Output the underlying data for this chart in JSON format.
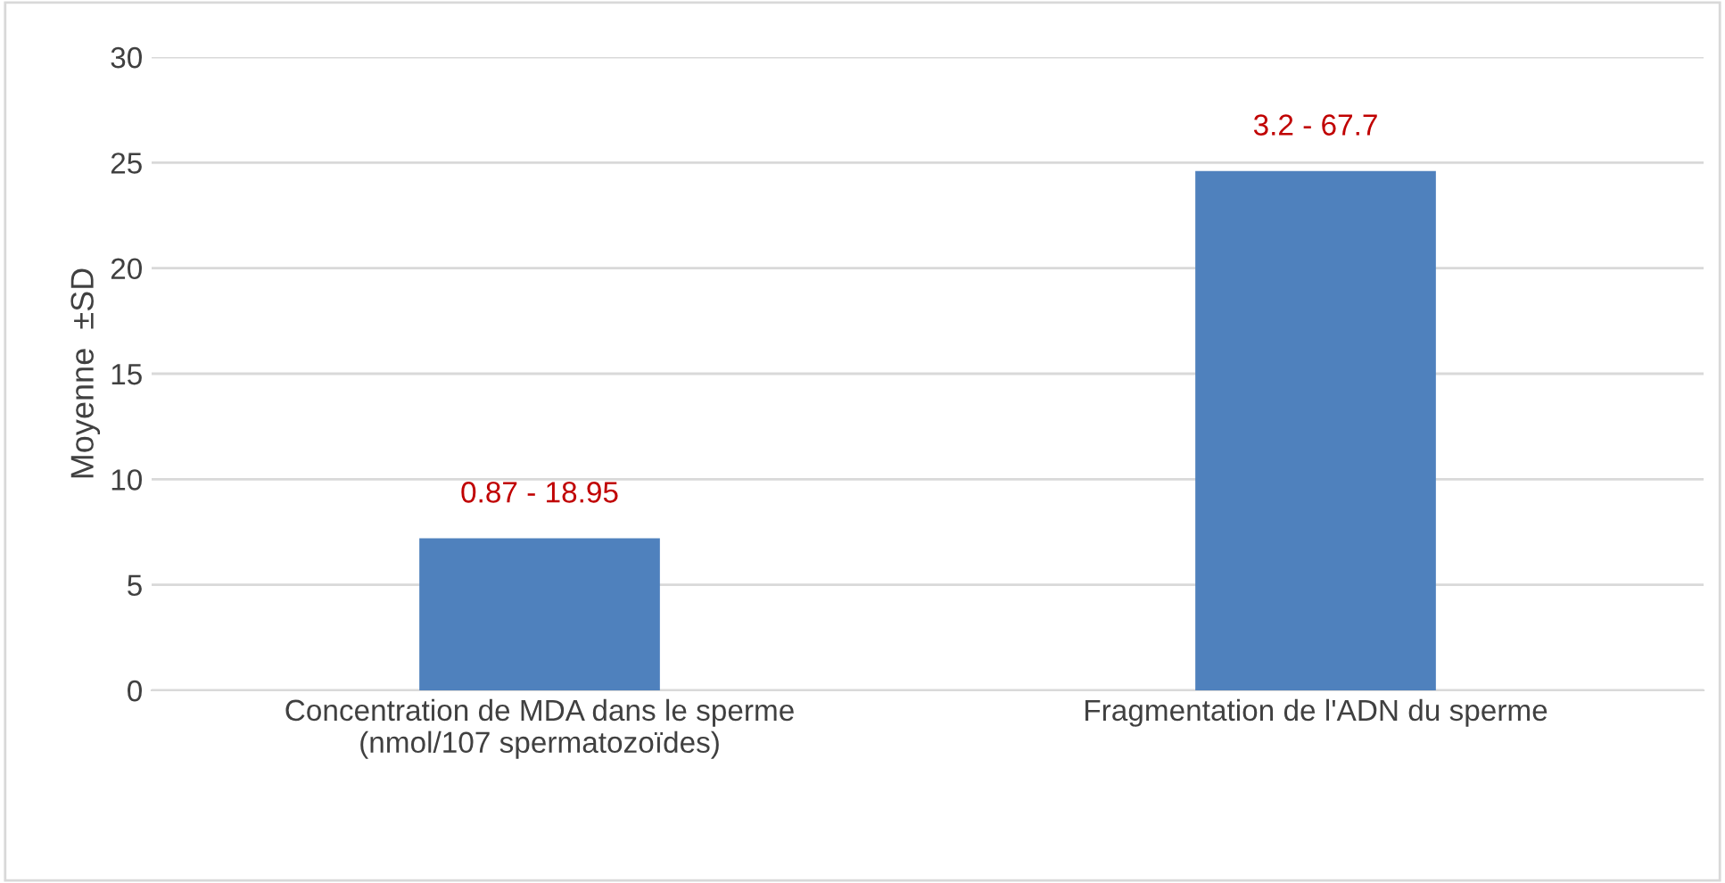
{
  "chart_data": {
    "type": "bar",
    "ylabel": "Moyenne  ±SD",
    "categories": [
      "Concentration de MDA dans le sperme\n(nmol/107 spermatozoïdes)",
      "Fragmentation de l'ADN du sperme"
    ],
    "series": [
      {
        "color": "#4f81bd",
        "values": [
          7.2,
          24.6
        ]
      }
    ],
    "annotations": [
      {
        "text": "0.87 - 18.95",
        "x": "Concentration de MDA dans le sperme\n(nmol/107 spermatozoïdes)",
        "y": 7.2
      },
      {
        "text": "3.2 - 67.7",
        "x": "Fragmentation de l'ADN du sperme",
        "y": 24.6
      }
    ],
    "ylim": [
      0,
      30
    ],
    "yticks": [
      0,
      5,
      10,
      15,
      20,
      25,
      30
    ],
    "grid": "y"
  }
}
